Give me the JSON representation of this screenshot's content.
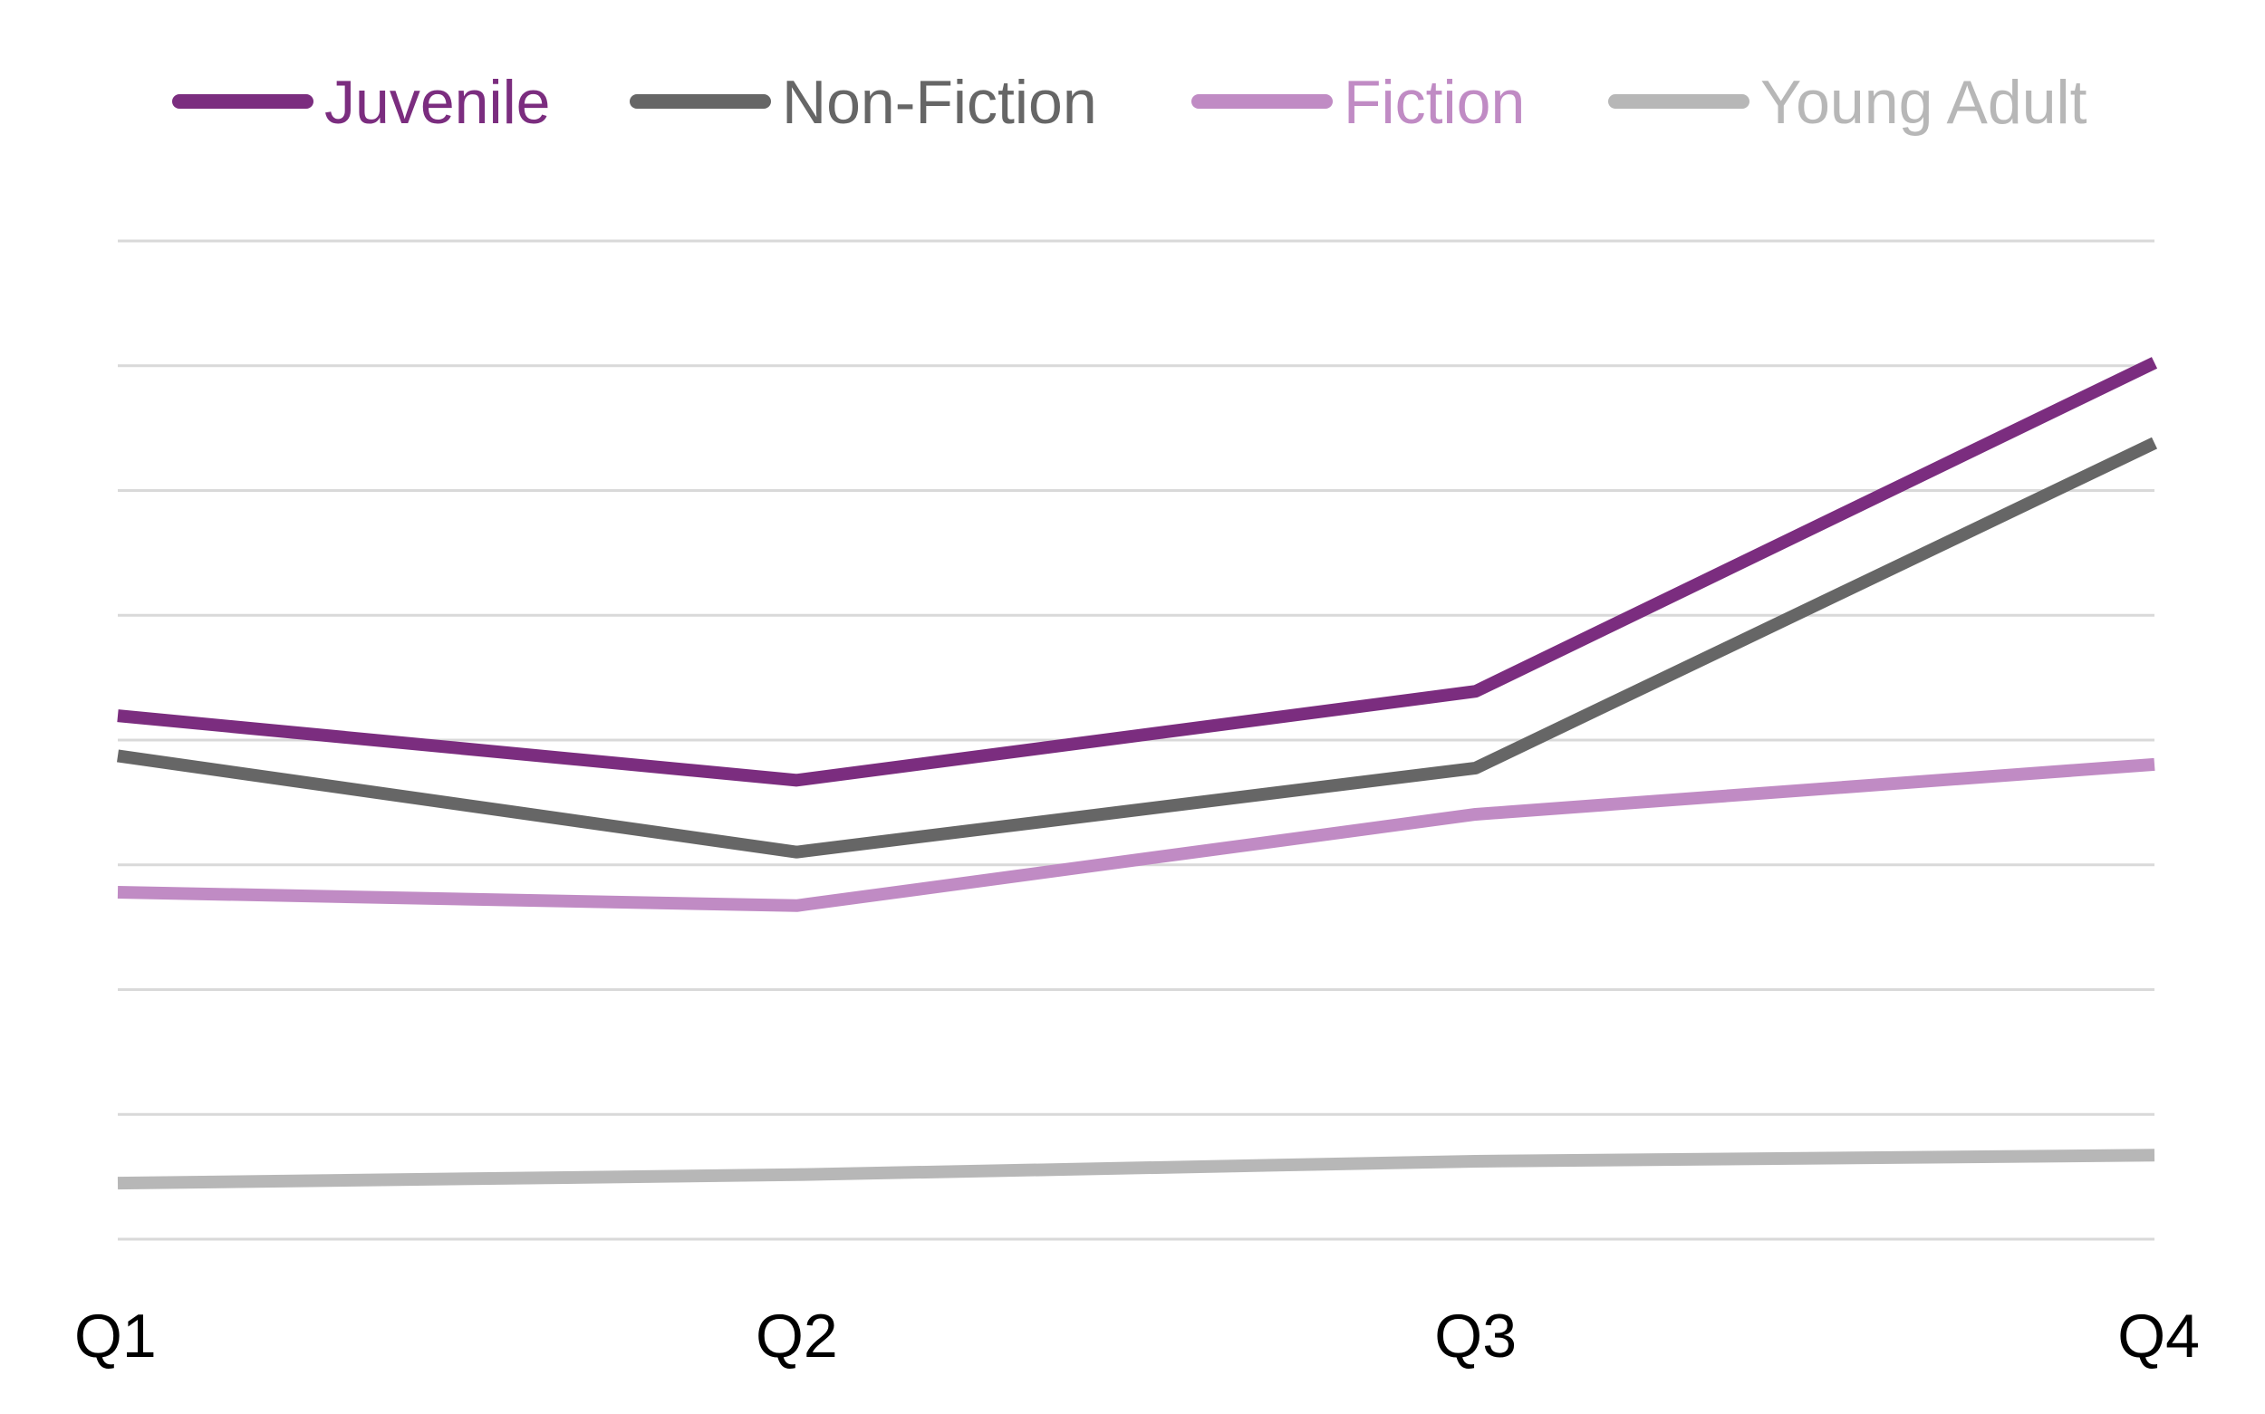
{
  "chart_data": {
    "type": "line",
    "title": "",
    "xlabel": "",
    "ylabel": "",
    "categories": [
      "Q1",
      "Q2",
      "Q3",
      "Q4"
    ],
    "ylim": [
      0,
      8.2
    ],
    "gridlines": 9,
    "grid": true,
    "legend_position": "top",
    "series": [
      {
        "name": "Juvenile",
        "values": [
          4.3,
          3.77,
          4.5,
          7.2
        ],
        "color": "#7B2D7F"
      },
      {
        "name": "Non-Fiction",
        "values": [
          3.97,
          3.18,
          3.87,
          6.54
        ],
        "color": "#666666"
      },
      {
        "name": "Fiction",
        "values": [
          2.85,
          2.74,
          3.49,
          3.9
        ],
        "color": "#C08BC4"
      },
      {
        "name": "Young Adult",
        "values": [
          0.46,
          0.53,
          0.64,
          0.69
        ],
        "color": "#B7B7B7"
      }
    ]
  }
}
